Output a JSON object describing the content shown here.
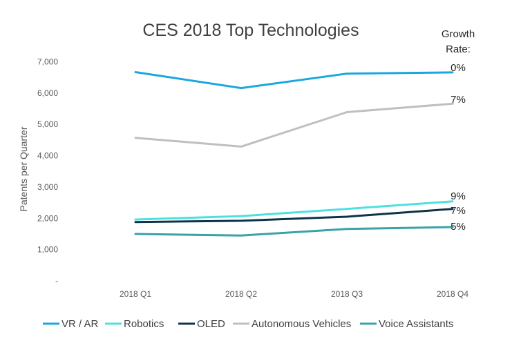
{
  "chart_data": {
    "type": "line",
    "title": "CES 2018 Top Technologies",
    "xlabel": "",
    "ylabel": "Patents per Quarter",
    "categories": [
      "2018 Q1",
      "2018 Q2",
      "2018 Q3",
      "2018 Q4"
    ],
    "ylim": [
      0,
      7000
    ],
    "yticks": [
      0,
      1000,
      2000,
      3000,
      4000,
      5000,
      6000,
      7000
    ],
    "ytick_labels": [
      "-",
      "1,000",
      "2,000",
      "3,000",
      "4,000",
      "5,000",
      "6,000",
      "7,000"
    ],
    "grid": false,
    "legend_position": "bottom",
    "growth_header": [
      "Growth",
      "Rate:"
    ],
    "series": [
      {
        "name": "VR / AR",
        "color": "#1aa7e0",
        "values": [
          6670,
          6160,
          6620,
          6660
        ],
        "growth": "0%"
      },
      {
        "name": "Robotics",
        "color": "#4de0e0",
        "values": [
          1960,
          2070,
          2300,
          2540
        ],
        "growth": "9%"
      },
      {
        "name": "OLED",
        "color": "#0d3349",
        "values": [
          1880,
          1920,
          2050,
          2300
        ],
        "growth": "7%"
      },
      {
        "name": "Autonomous Vehicles",
        "color": "#bfbfbf",
        "values": [
          4570,
          4290,
          5390,
          5660
        ],
        "growth": "7%"
      },
      {
        "name": "Voice Assistants",
        "color": "#36a3a8",
        "values": [
          1500,
          1450,
          1660,
          1720
        ],
        "growth": "5%"
      }
    ]
  }
}
